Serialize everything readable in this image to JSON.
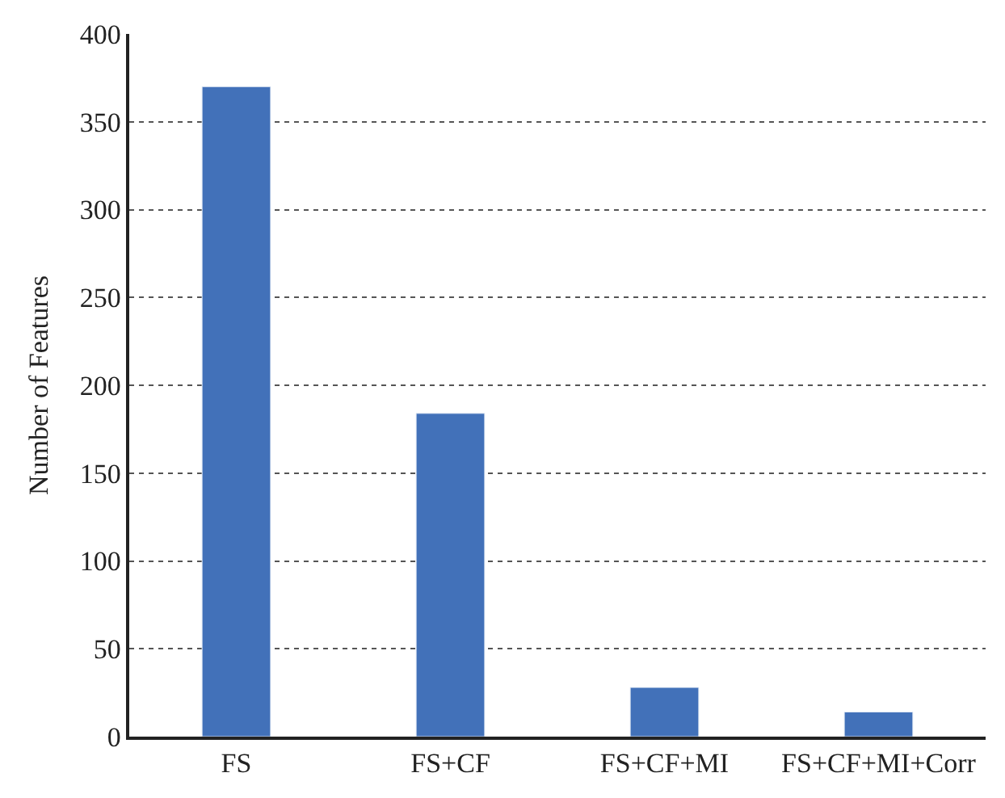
{
  "chart_data": {
    "type": "bar",
    "ylabel": "Number of Features",
    "categories": [
      "FS",
      "FS+CF",
      "FS+CF+MI",
      "FS+CF+MI+Corr"
    ],
    "values": [
      370,
      184,
      28,
      14
    ],
    "color": "#4271b9",
    "ylim": [
      0,
      400
    ],
    "yticks": [
      0,
      50,
      100,
      150,
      200,
      250,
      300,
      350,
      400
    ],
    "grid": "y"
  }
}
